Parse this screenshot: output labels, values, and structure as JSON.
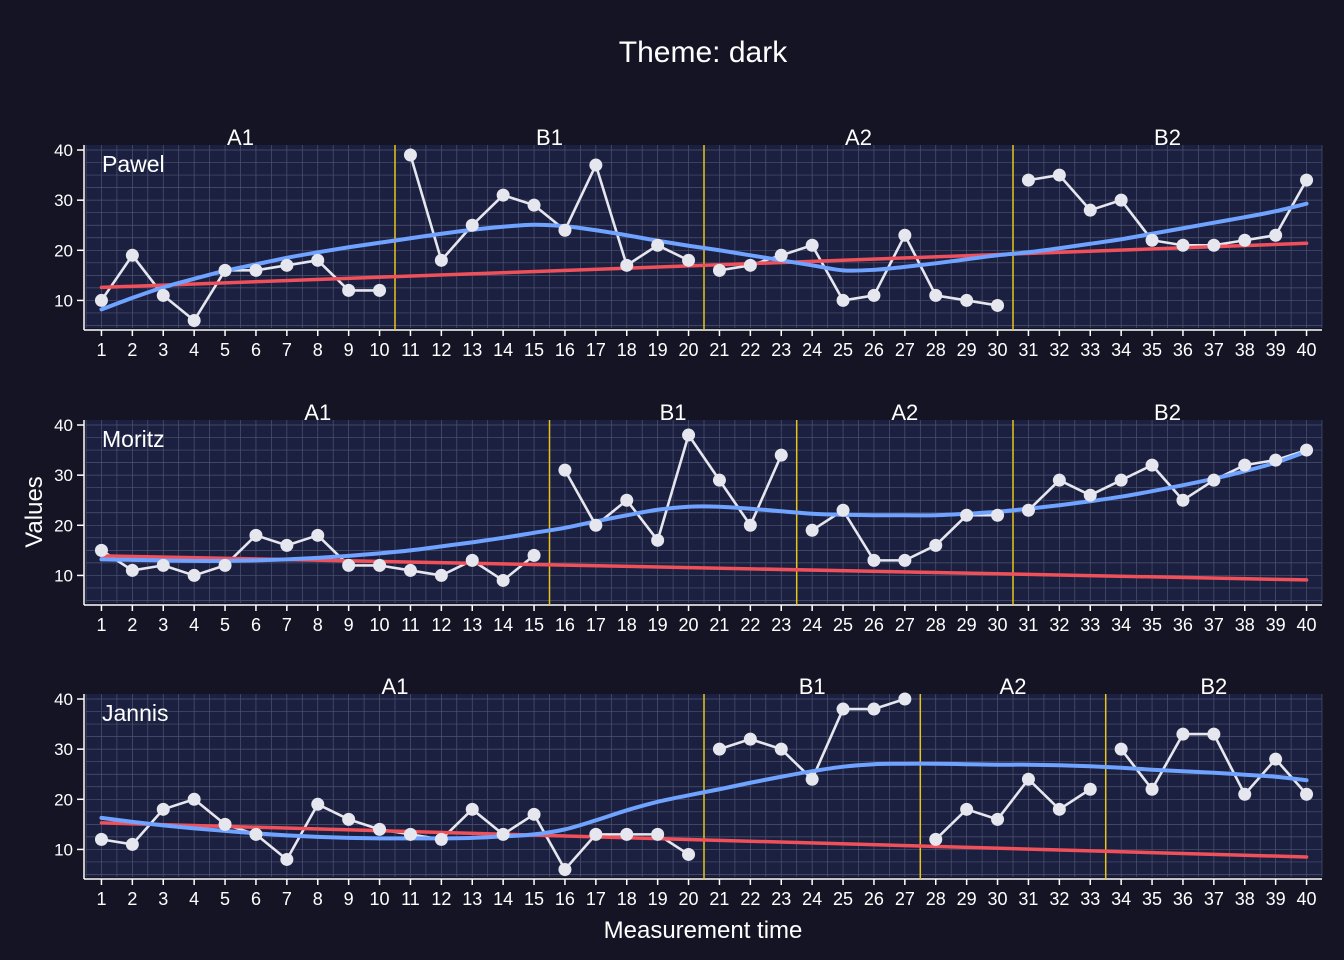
{
  "colors": {
    "background": "#141424",
    "panel": "#1b2040",
    "grid": "#5e6480",
    "text": "#ffffff",
    "data": "#e6e6ee",
    "phase_line": "#e8c41a",
    "smooth_line": "#6fa3ff",
    "trend_line": "#f0505a"
  },
  "chart_data": {
    "type": "line",
    "title": "Theme: dark",
    "xlabel": "Measurement time",
    "ylabel": "Values",
    "x_ticks": [
      1,
      2,
      3,
      4,
      5,
      6,
      7,
      8,
      9,
      10,
      11,
      12,
      13,
      14,
      15,
      16,
      17,
      18,
      19,
      20,
      21,
      22,
      23,
      24,
      25,
      26,
      27,
      28,
      29,
      30,
      31,
      32,
      33,
      34,
      35,
      36,
      37,
      38,
      39,
      40
    ],
    "y_ticks": [
      10,
      20,
      30,
      40
    ],
    "ylim": [
      4.5,
      41
    ],
    "xlim": [
      0.5,
      40.5
    ],
    "panels": [
      {
        "case": "Pawel",
        "phases": [
          {
            "label": "A1",
            "start": 1,
            "end": 10
          },
          {
            "label": "B1",
            "start": 11,
            "end": 20
          },
          {
            "label": "A2",
            "start": 21,
            "end": 30
          },
          {
            "label": "B2",
            "start": 31,
            "end": 40
          }
        ],
        "values": [
          10,
          19,
          11,
          6,
          16,
          16,
          17,
          18,
          12,
          12,
          39,
          18,
          25,
          31,
          29,
          24,
          37,
          17,
          21,
          18,
          16,
          17,
          19,
          21,
          10,
          11,
          23,
          11,
          10,
          9,
          34,
          35,
          28,
          30,
          22,
          21,
          21,
          22,
          23,
          34
        ],
        "trend": {
          "start": 12.6,
          "end": 21.4
        },
        "smooth": [
          8.2,
          10.5,
          12.6,
          14.3,
          15.9,
          17.2,
          18.5,
          19.6,
          20.6,
          21.5,
          22.4,
          23.3,
          24.1,
          24.7,
          25.1,
          24.8,
          24.0,
          23.0,
          21.9,
          20.9,
          20.0,
          19.0,
          18.0,
          17.0,
          16.0,
          16.1,
          16.7,
          17.4,
          18.2,
          19.0,
          19.6,
          20.4,
          21.3,
          22.2,
          23.3,
          24.4,
          25.5,
          26.6,
          27.8,
          29.3
        ]
      },
      {
        "case": "Moritz",
        "phases": [
          {
            "label": "A1",
            "start": 1,
            "end": 15
          },
          {
            "label": "B1",
            "start": 16,
            "end": 23
          },
          {
            "label": "A2",
            "start": 24,
            "end": 30
          },
          {
            "label": "B2",
            "start": 31,
            "end": 40
          }
        ],
        "values": [
          15,
          11,
          12,
          10,
          12,
          18,
          16,
          18,
          12,
          12,
          11,
          10,
          13,
          9,
          14,
          31,
          20,
          25,
          17,
          38,
          29,
          20,
          34,
          19,
          23,
          13,
          13,
          16,
          22,
          22,
          23,
          29,
          26,
          29,
          32,
          25,
          29,
          32,
          33,
          35
        ],
        "trend": {
          "start": 13.9,
          "end": 9.1
        },
        "smooth": [
          13.2,
          13.1,
          13.0,
          12.9,
          12.9,
          13.0,
          13.2,
          13.5,
          13.9,
          14.4,
          15.0,
          15.8,
          16.6,
          17.5,
          18.5,
          19.5,
          20.8,
          22.0,
          23.1,
          23.7,
          23.7,
          23.3,
          22.8,
          22.3,
          22.1,
          22.0,
          22.0,
          22.0,
          22.3,
          22.7,
          23.3,
          24.0,
          24.8,
          25.7,
          26.8,
          28.0,
          29.3,
          30.8,
          32.5,
          34.7
        ]
      },
      {
        "case": "Jannis",
        "phases": [
          {
            "label": "A1",
            "start": 1,
            "end": 20
          },
          {
            "label": "B1",
            "start": 21,
            "end": 27
          },
          {
            "label": "A2",
            "start": 28,
            "end": 33
          },
          {
            "label": "B2",
            "start": 34,
            "end": 40
          }
        ],
        "values": [
          12,
          11,
          18,
          20,
          15,
          13,
          8,
          19,
          16,
          14,
          13,
          12,
          18,
          13,
          17,
          6,
          13,
          13,
          13,
          9,
          30,
          32,
          30,
          24,
          38,
          38,
          40,
          12,
          18,
          16,
          24,
          18,
          22,
          30,
          22,
          33,
          33,
          21,
          28,
          21
        ],
        "trend": {
          "start": 15.3,
          "end": 8.5
        },
        "smooth": [
          16.3,
          15.5,
          14.8,
          14.2,
          13.7,
          13.2,
          12.8,
          12.5,
          12.3,
          12.2,
          12.2,
          12.2,
          12.3,
          12.6,
          13.0,
          14.0,
          15.8,
          17.8,
          19.5,
          20.8,
          22.0,
          23.3,
          24.5,
          25.6,
          26.5,
          27.0,
          27.1,
          27.1,
          27.0,
          26.9,
          26.9,
          26.8,
          26.6,
          26.3,
          25.9,
          25.6,
          25.3,
          24.9,
          24.5,
          23.8
        ]
      }
    ]
  }
}
